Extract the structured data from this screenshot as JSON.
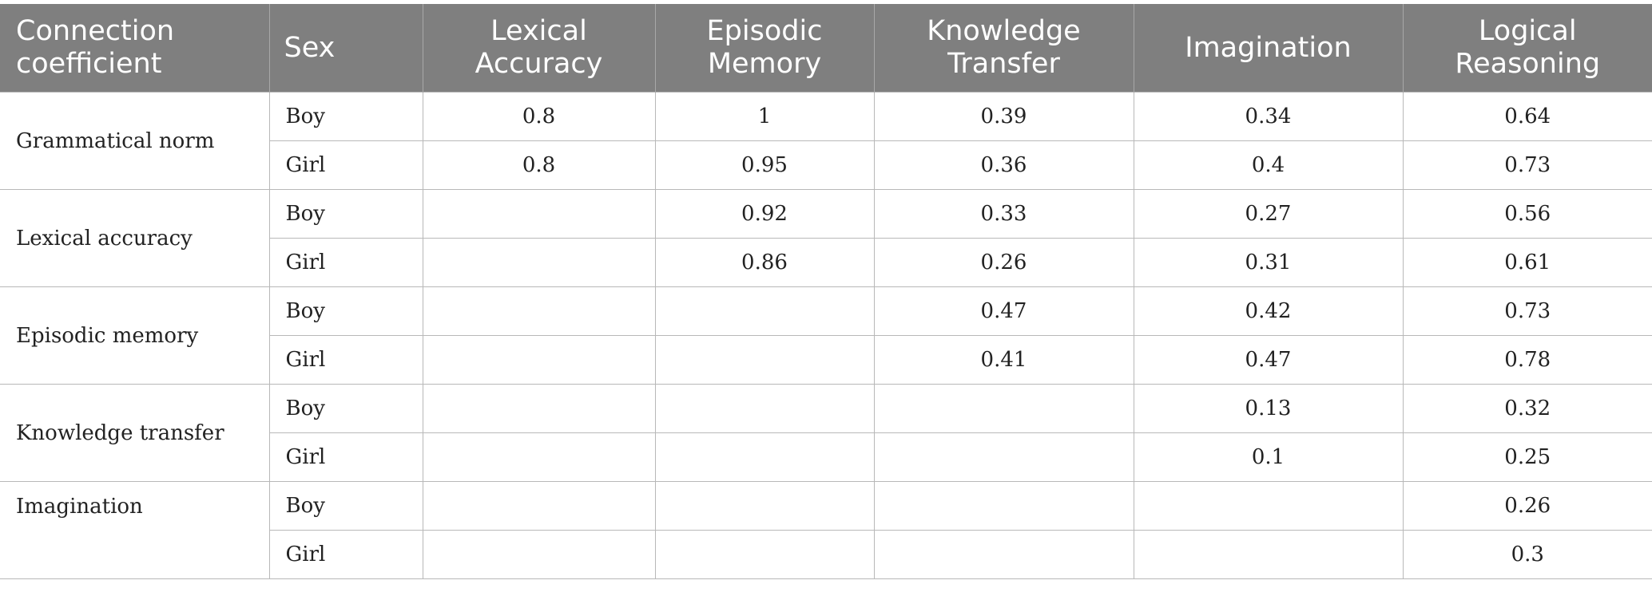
{
  "table": {
    "headers": [
      "Connection coefficient",
      "Sex",
      "Lexical Accuracy",
      "Episodic Memory",
      "Knowledge Transfer",
      "Imagination",
      "Logical Reasoning"
    ],
    "groups": [
      {
        "label": "Grammatical norm",
        "rows": [
          {
            "sex": "Boy",
            "values": [
              "0.8",
              "1",
              "0.39",
              "0.34",
              "0.64"
            ]
          },
          {
            "sex": "Girl",
            "values": [
              "0.8",
              "0.95",
              "0.36",
              "0.4",
              "0.73"
            ]
          }
        ]
      },
      {
        "label": "Lexical accuracy",
        "rows": [
          {
            "sex": "Boy",
            "values": [
              "",
              "0.92",
              "0.33",
              "0.27",
              "0.56"
            ]
          },
          {
            "sex": "Girl",
            "values": [
              "",
              "0.86",
              "0.26",
              "0.31",
              "0.61"
            ]
          }
        ]
      },
      {
        "label": "Episodic memory",
        "rows": [
          {
            "sex": "Boy",
            "values": [
              "",
              "",
              "0.47",
              "0.42",
              "0.73"
            ]
          },
          {
            "sex": "Girl",
            "values": [
              "",
              "",
              "0.41",
              "0.47",
              "0.78"
            ]
          }
        ]
      },
      {
        "label": "Knowledge transfer",
        "rows": [
          {
            "sex": "Boy",
            "values": [
              "",
              "",
              "",
              "0.13",
              "0.32"
            ]
          },
          {
            "sex": "Girl",
            "values": [
              "",
              "",
              "",
              "0.1",
              "0.25"
            ]
          }
        ]
      },
      {
        "label": "Imagination",
        "rows": [
          {
            "sex": "Boy",
            "values": [
              "",
              "",
              "",
              "",
              "0.26"
            ]
          },
          {
            "sex": "Girl",
            "values": [
              "",
              "",
              "",
              "",
              "0.3"
            ]
          }
        ]
      }
    ]
  },
  "colors": {
    "header_background": "#7f7f7f",
    "header_text": "#ffffff",
    "grid_line": "#b8b8b8"
  }
}
